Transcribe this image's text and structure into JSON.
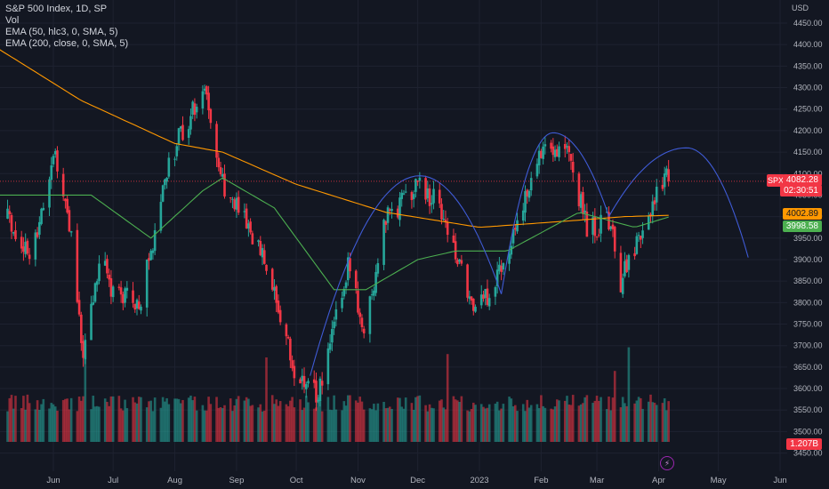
{
  "legend": {
    "title": "S&P 500 Index, 1D, SP",
    "vol": "Vol",
    "ema50": "EMA (50, hlc3, 0, SMA, 5)",
    "ema200": "EMA (200, close, 0, SMA, 5)"
  },
  "price_labels": {
    "last": "4082.28",
    "countdown": "02:30:51",
    "ema200_val": "4002.89",
    "ema50_val": "3998.58",
    "volume_val": "1.207B",
    "symbol": "SPX"
  },
  "colors": {
    "up": "#26a69a",
    "down": "#f23645",
    "ema50": "#4caf50",
    "ema200": "#ff9800",
    "arc": "#3f5bd6",
    "bg": "#131722"
  },
  "chart_data": {
    "type": "candlestick",
    "currency_label": "USD",
    "y_ticks": [
      3450,
      3500,
      3550,
      3600,
      3650,
      3700,
      3750,
      3800,
      3850,
      3900,
      3950,
      4000,
      4050,
      4100,
      4150,
      4200,
      4250,
      4300,
      4350,
      4400,
      4450
    ],
    "x_ticks": [
      "Jun",
      "Jul",
      "Aug",
      "Sep",
      "Oct",
      "Nov",
      "Dec",
      "2023",
      "Feb",
      "Mar",
      "Apr",
      "May",
      "Jun"
    ],
    "price_anchors": [
      [
        "2022-05-09",
        4000
      ],
      [
        "2022-05-20",
        3900
      ],
      [
        "2022-06-02",
        4150
      ],
      [
        "2022-06-10",
        3950
      ],
      [
        "2022-06-16",
        3670
      ],
      [
        "2022-06-24",
        3900
      ],
      [
        "2022-07-01",
        3830
      ],
      [
        "2022-07-14",
        3790
      ],
      [
        "2022-07-29",
        4130
      ],
      [
        "2022-08-16",
        4305
      ],
      [
        "2022-08-26",
        4060
      ],
      [
        "2022-09-13",
        3930
      ],
      [
        "2022-09-30",
        3640
      ],
      [
        "2022-10-12",
        3580
      ],
      [
        "2022-10-28",
        3900
      ],
      [
        "2022-11-03",
        3720
      ],
      [
        "2022-11-15",
        3990
      ],
      [
        "2022-12-01",
        4080
      ],
      [
        "2022-12-13",
        4020
      ],
      [
        "2022-12-28",
        3785
      ],
      [
        "2023-01-05",
        3810
      ],
      [
        "2023-01-27",
        4070
      ],
      [
        "2023-02-02",
        4180
      ],
      [
        "2023-02-15",
        4150
      ],
      [
        "2023-02-24",
        3970
      ],
      [
        "2023-03-08",
        3990
      ],
      [
        "2023-03-13",
        3850
      ],
      [
        "2023-03-22",
        3940
      ],
      [
        "2023-04-04",
        4100
      ],
      [
        "2023-04-06",
        4082
      ]
    ],
    "volume_range": [
      0.9,
      1.4
    ],
    "volume_spikes": [
      [
        "2022-06-17",
        2.9
      ],
      [
        "2022-09-16",
        2.5
      ],
      [
        "2022-12-16",
        2.6
      ],
      [
        "2023-03-17",
        2.8
      ],
      [
        "2023-03-10",
        2.1
      ]
    ],
    "ema200_anchors": [
      [
        "2022-05-01",
        4400
      ],
      [
        "2022-06-15",
        4270
      ],
      [
        "2022-08-01",
        4170
      ],
      [
        "2022-08-25",
        4150
      ],
      [
        "2022-10-01",
        4075
      ],
      [
        "2022-11-15",
        4010
      ],
      [
        "2023-01-01",
        3975
      ],
      [
        "2023-02-15",
        3990
      ],
      [
        "2023-03-15",
        4000
      ],
      [
        "2023-04-06",
        4003
      ]
    ],
    "ema50_anchors": [
      [
        "2022-05-01",
        4050
      ],
      [
        "2022-06-20",
        4050
      ],
      [
        "2022-07-20",
        3950
      ],
      [
        "2022-08-15",
        4060
      ],
      [
        "2022-08-25",
        4090
      ],
      [
        "2022-09-20",
        4020
      ],
      [
        "2022-10-20",
        3830
      ],
      [
        "2022-11-05",
        3830
      ],
      [
        "2022-12-01",
        3900
      ],
      [
        "2022-12-20",
        3920
      ],
      [
        "2023-01-15",
        3920
      ],
      [
        "2023-02-20",
        4010
      ],
      [
        "2023-03-20",
        3975
      ],
      [
        "2023-04-06",
        3999
      ]
    ],
    "arcs": [
      {
        "start": [
          "2022-10-08",
          3630
        ],
        "peak": [
          "2022-12-02",
          4095
        ],
        "end": [
          "2023-01-12",
          3820
        ]
      },
      {
        "start": [
          "2023-01-12",
          3820
        ],
        "peak": [
          "2023-02-07",
          4195
        ],
        "end": [
          "2023-03-07",
          4000
        ]
      },
      {
        "start": [
          "2023-03-07",
          4000
        ],
        "peak": [
          "2023-04-15",
          4160
        ],
        "end": [
          "2023-05-16",
          3905
        ]
      }
    ],
    "last_price": 4082.28,
    "last_volume": "1.207B"
  }
}
